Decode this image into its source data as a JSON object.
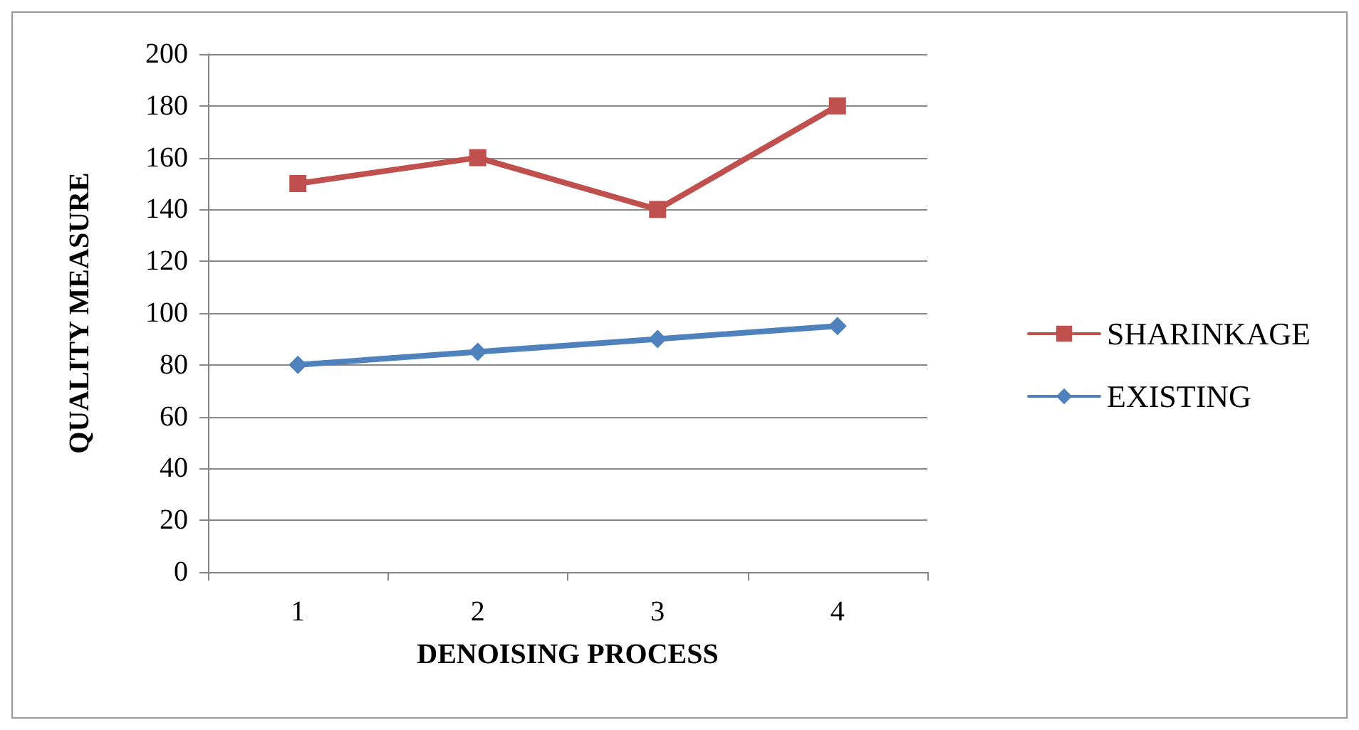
{
  "chart_data": {
    "type": "line",
    "xlabel": "DENOISING PROCESS",
    "ylabel": "QUALITY MEASURE",
    "categories": [
      "1",
      "2",
      "3",
      "4"
    ],
    "series": [
      {
        "name": "SHARINKAGE",
        "color": "#c0504d",
        "marker": "square",
        "values": [
          150,
          160,
          140,
          180
        ]
      },
      {
        "name": "EXISTING",
        "color": "#4f81bd",
        "marker": "diamond",
        "values": [
          80,
          85,
          90,
          95
        ]
      }
    ],
    "ylim": [
      0,
      200
    ],
    "yticks": [
      0,
      20,
      40,
      60,
      80,
      100,
      120,
      140,
      160,
      180,
      200
    ],
    "grid": "y",
    "legend": "right",
    "line_style": "solid"
  }
}
